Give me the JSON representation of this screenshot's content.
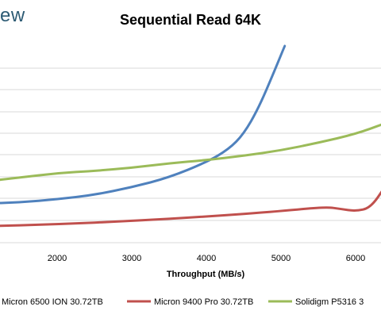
{
  "brand": {
    "text": "ew"
  },
  "chart_data": {
    "type": "line",
    "title": "Sequential Read 64K",
    "xlabel": "Throughput (MB/s)",
    "ylabel": "",
    "xlim": [
      1000,
      6400
    ],
    "x_ticks": [
      2000,
      3000,
      4000,
      5000,
      6000
    ],
    "grid": "horizontal",
    "legend": "bottom",
    "series": [
      {
        "name": "Micron 6500 ION 30.72TB",
        "color": "#4f81bd",
        "points": [
          [
            1000,
            1.8
          ],
          [
            1500,
            1.85
          ],
          [
            2000,
            2.0
          ],
          [
            2500,
            2.2
          ],
          [
            3000,
            2.55
          ],
          [
            3500,
            3.0
          ],
          [
            4000,
            3.7
          ],
          [
            4300,
            4.3
          ],
          [
            4500,
            5.0
          ],
          [
            4700,
            6.2
          ],
          [
            4900,
            7.8
          ],
          [
            5050,
            9.05
          ]
        ]
      },
      {
        "name": "Micron 9400 Pro 30.72TB",
        "color": "#c0504d",
        "points": [
          [
            1000,
            0.75
          ],
          [
            2000,
            0.85
          ],
          [
            3000,
            1.0
          ],
          [
            4000,
            1.2
          ],
          [
            5000,
            1.45
          ],
          [
            5600,
            1.65
          ],
          [
            5800,
            1.55
          ],
          [
            6000,
            1.45
          ],
          [
            6200,
            1.6
          ],
          [
            6400,
            2.6
          ]
        ]
      },
      {
        "name": "Solidigm P5316 3",
        "color": "#9bbb59",
        "points": [
          [
            1000,
            2.8
          ],
          [
            1500,
            3.0
          ],
          [
            2000,
            3.2
          ],
          [
            2500,
            3.3
          ],
          [
            3000,
            3.45
          ],
          [
            3500,
            3.65
          ],
          [
            4000,
            3.8
          ],
          [
            4500,
            4.0
          ],
          [
            5000,
            4.25
          ],
          [
            5500,
            4.6
          ],
          [
            6000,
            5.0
          ],
          [
            6400,
            5.5
          ]
        ]
      }
    ]
  }
}
